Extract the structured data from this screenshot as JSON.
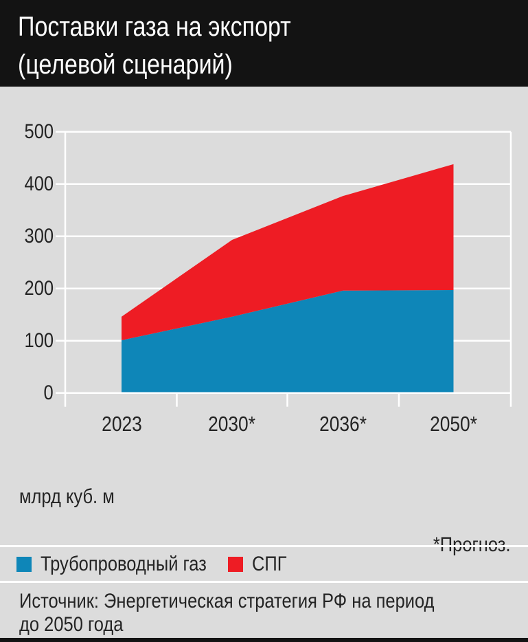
{
  "title": {
    "line1": "Поставки газа на экспорт",
    "line2": "(целевой сценарий)"
  },
  "chart_data": {
    "type": "area",
    "stacked": true,
    "categories": [
      "2023",
      "2030*",
      "2036*",
      "2050*"
    ],
    "series": [
      {
        "name": "Трубопроводный газ",
        "color": "#0e86b8",
        "values": [
          101,
          146,
          196,
          197
        ]
      },
      {
        "name": "СПГ",
        "color": "#ee1c24",
        "values": [
          45,
          147,
          181,
          241
        ]
      }
    ],
    "totals": [
      146,
      293,
      377,
      438
    ],
    "ylim": [
      0,
      500
    ],
    "yticks": [
      500,
      400,
      300,
      200,
      100,
      0
    ],
    "grid": true,
    "legend_position": "bottom",
    "unit_label": "млрд куб. м",
    "footnote": "*Прогноз."
  },
  "legend": {
    "items": [
      {
        "label": "Трубопроводный газ",
        "color": "#0e86b8"
      },
      {
        "label": "СПГ",
        "color": "#ee1c24"
      }
    ]
  },
  "source": {
    "line1": "Источник: Энергетическая стратегия РФ на период",
    "line2": "до 2050 года"
  },
  "colors": {
    "background": "#dcdcdc",
    "header_bg": "#131313",
    "title_text": "#ffffff",
    "axis_text": "#242424",
    "gridline": "#ffffff",
    "pipeline_blue": "#0e86b8",
    "lng_red": "#ee1c24"
  }
}
